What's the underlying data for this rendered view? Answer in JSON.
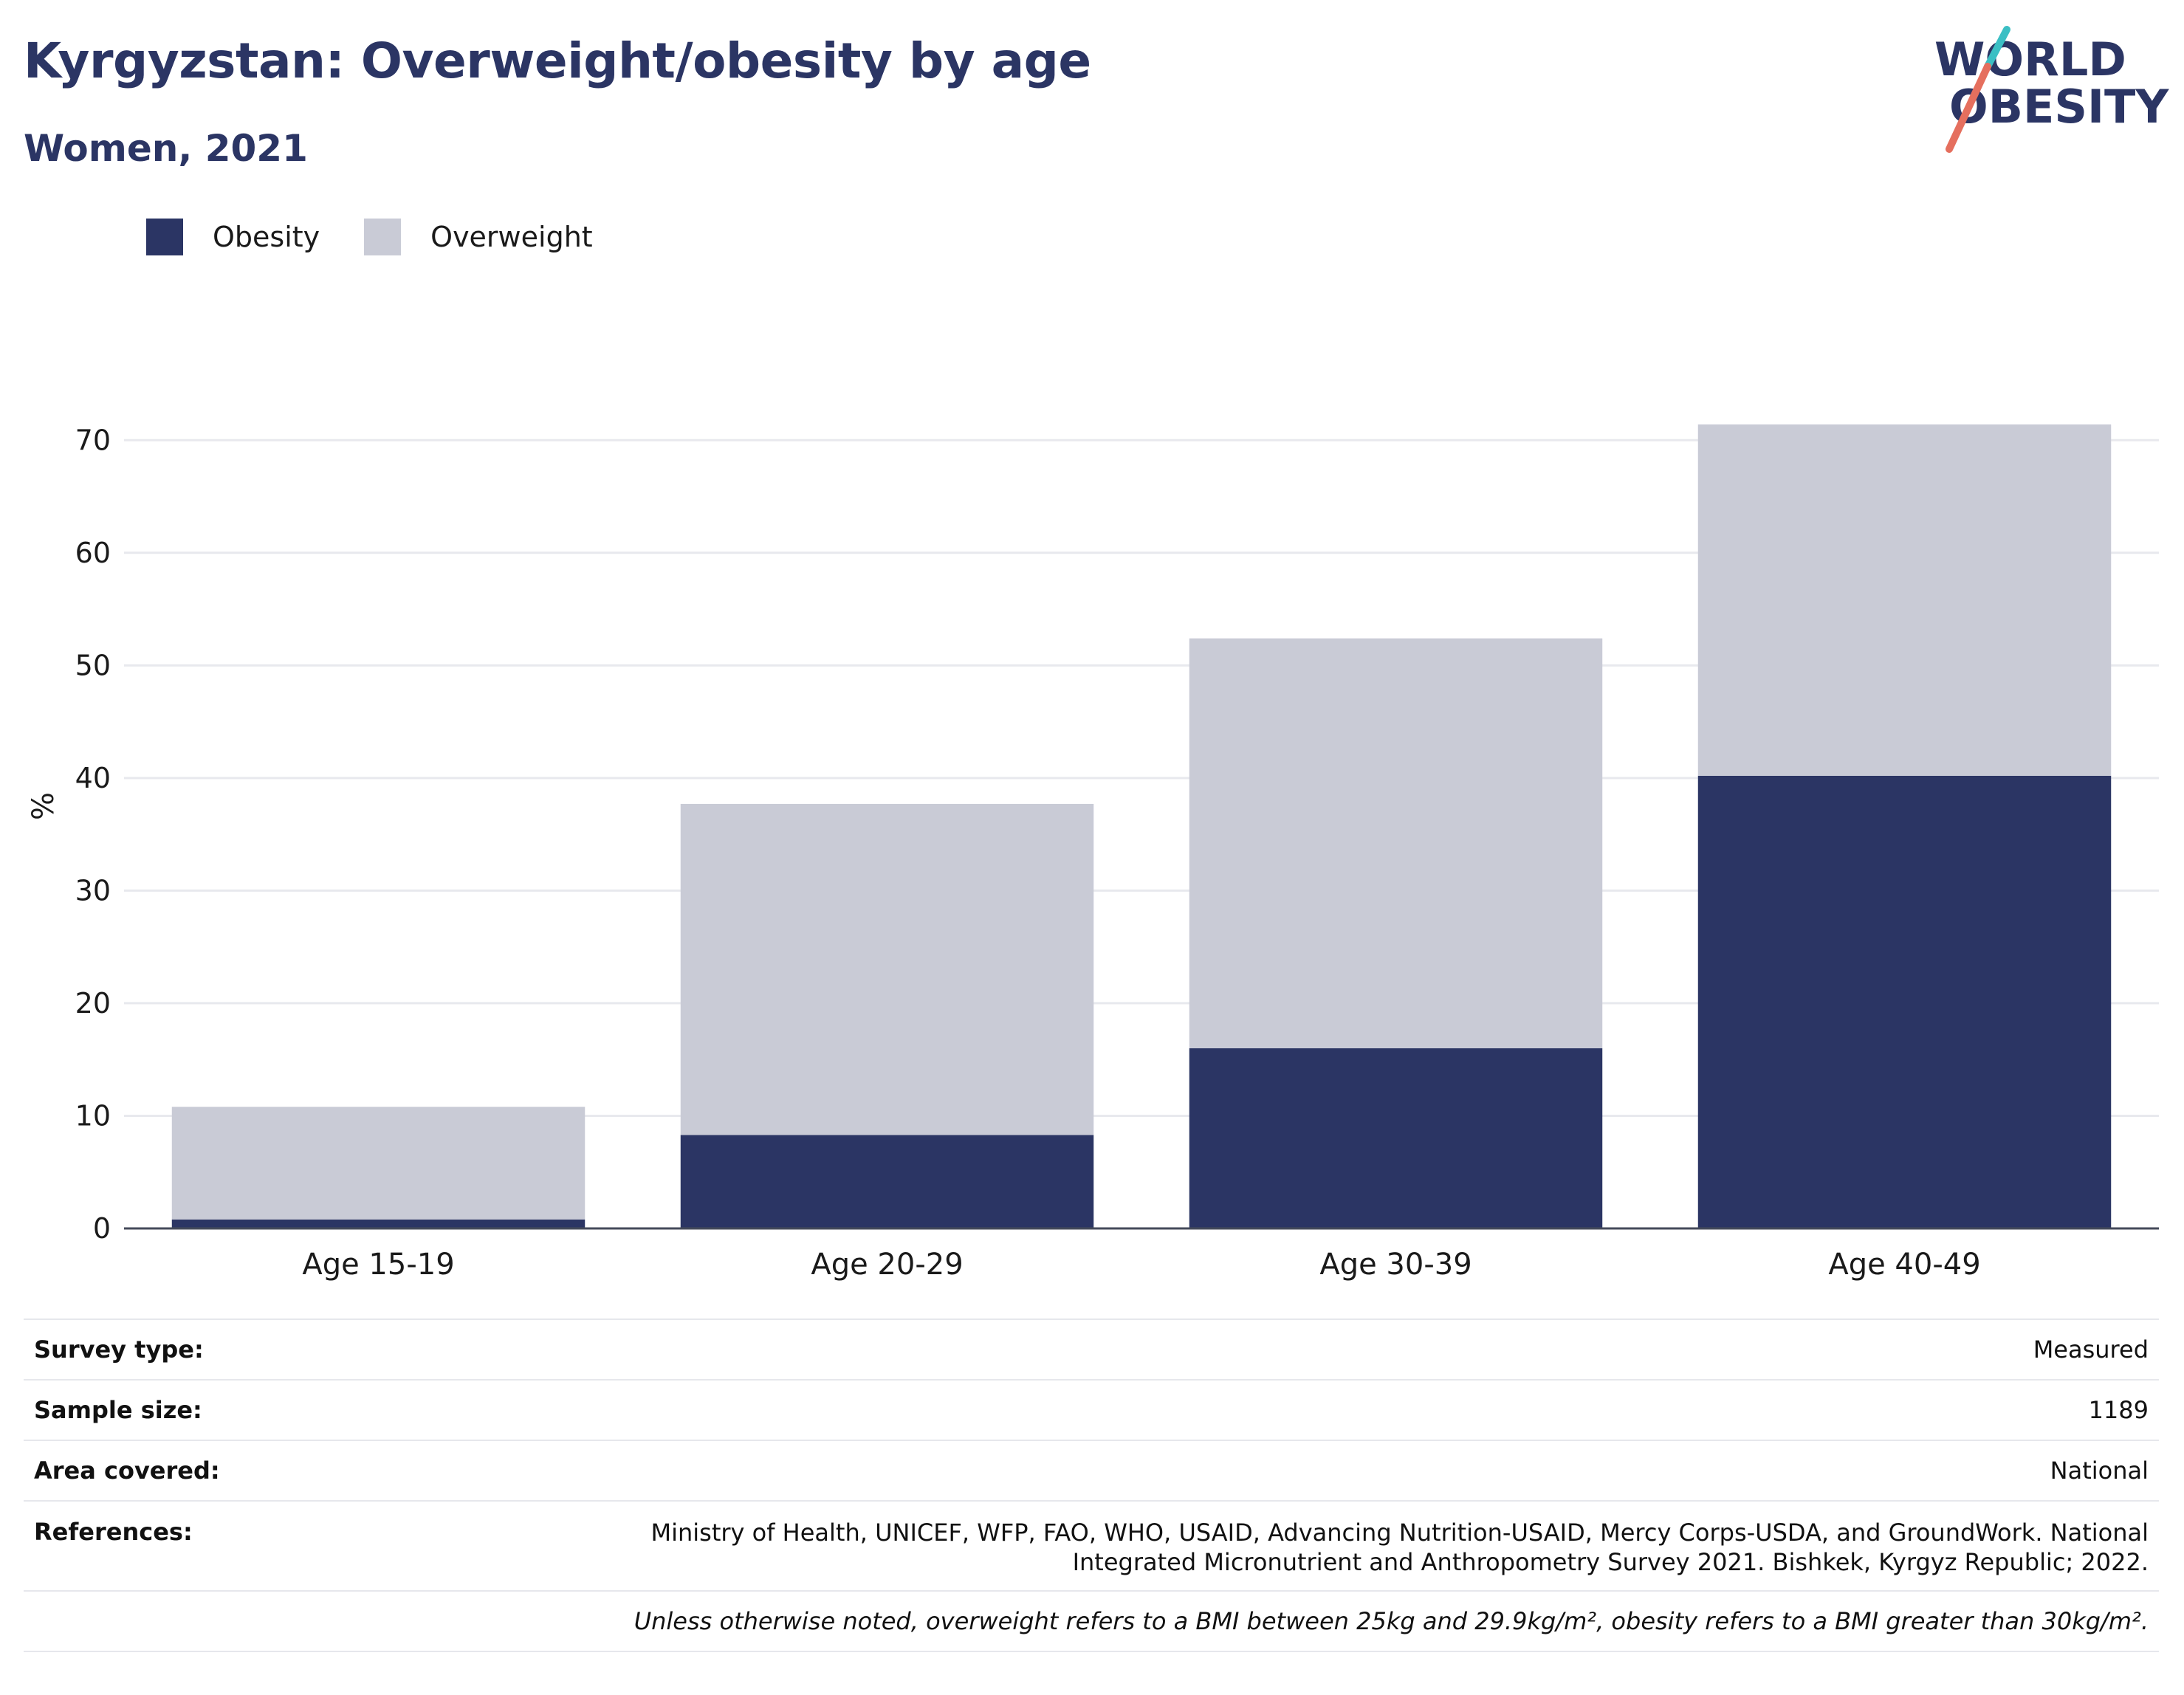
{
  "header": {
    "title": "Kyrgyzstan: Overweight/obesity by age",
    "subtitle": "Women, 2021"
  },
  "logo": {
    "line1": "WORLD",
    "line2": "OBESITY"
  },
  "colors": {
    "obesity": "#2b3564",
    "overweight": "#c9cbd6",
    "title": "#2b3564",
    "logo_teal": "#3bbfc4",
    "logo_coral": "#e56f5e"
  },
  "chart_data": {
    "type": "bar",
    "stacked": true,
    "categories": [
      "Age 15-19",
      "Age 20-29",
      "Age 30-39",
      "Age 40-49"
    ],
    "series": [
      {
        "name": "Obesity",
        "values": [
          0.8,
          8.3,
          16.0,
          40.2
        ]
      },
      {
        "name": "Overweight",
        "values": [
          10.0,
          29.4,
          36.4,
          31.2
        ]
      }
    ],
    "ylabel": "%",
    "xlabel": "",
    "ylim": [
      0,
      75
    ],
    "yticks": [
      0,
      10,
      20,
      30,
      40,
      50,
      60,
      70
    ],
    "grid": true,
    "legend": "top-left"
  },
  "info": {
    "survey_type_label": "Survey type:",
    "survey_type_value": "Measured",
    "sample_size_label": "Sample size:",
    "sample_size_value": "1189",
    "area_label": "Area covered:",
    "area_value": "National",
    "references_label": "References:",
    "references_value": "Ministry of Health, UNICEF, WFP, FAO, WHO, USAID, Advancing Nutrition-USAID, Mercy Corps-USDA, and GroundWork. National Integrated Micronutrient and Anthropometry Survey 2021. Bishkek, Kyrgyz Republic; 2022.",
    "note": "Unless otherwise noted, overweight refers to a BMI between 25kg and 29.9kg/m², obesity refers to a BMI greater than 30kg/m²."
  }
}
